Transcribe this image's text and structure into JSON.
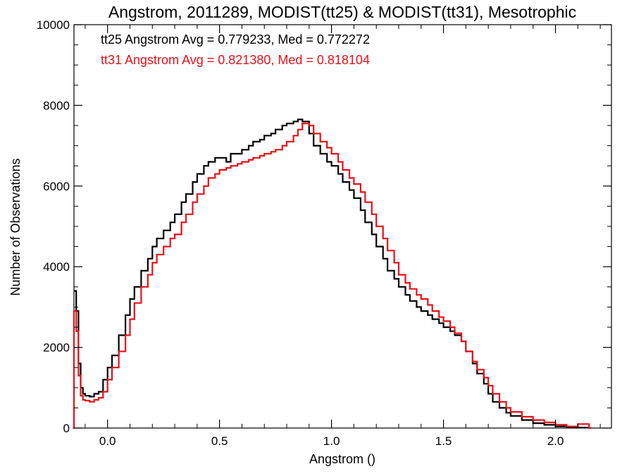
{
  "chart_data": {
    "type": "line",
    "step": true,
    "title": "Angstrom, 2011289, MODIST(tt25) & MODIST(tt31), Mesotrophic",
    "xlabel": "Angstrom ()",
    "ylabel": "Number of Observations",
    "xlim": [
      -0.15,
      2.25
    ],
    "ylim": [
      0,
      10000
    ],
    "xticks": [
      0.0,
      0.5,
      1.0,
      1.5,
      2.0
    ],
    "xtick_labels": [
      "0.0",
      "0.5",
      "1.0",
      "1.5",
      "2.0"
    ],
    "yticks": [
      0,
      2000,
      4000,
      6000,
      8000,
      10000
    ],
    "ytick_labels": [
      "0",
      "2000",
      "4000",
      "6000",
      "8000",
      "10000"
    ],
    "grid": false,
    "annotations": [
      {
        "text": "tt25 Angstrom Avg = 0.779233, Med = 0.772272",
        "color": "#000000"
      },
      {
        "text": "tt31 Angstrom Avg = 0.821380, Med = 0.818104",
        "color": "#e8101a"
      }
    ],
    "series": [
      {
        "color": "#000000",
        "x": [
          -0.15,
          -0.14,
          -0.13,
          -0.12,
          -0.11,
          -0.1,
          -0.08,
          -0.06,
          -0.04,
          -0.02,
          0.0,
          0.02,
          0.05,
          0.08,
          0.1,
          0.12,
          0.15,
          0.18,
          0.2,
          0.22,
          0.25,
          0.28,
          0.3,
          0.33,
          0.35,
          0.38,
          0.4,
          0.43,
          0.45,
          0.48,
          0.5,
          0.53,
          0.55,
          0.58,
          0.6,
          0.63,
          0.65,
          0.68,
          0.7,
          0.73,
          0.75,
          0.78,
          0.8,
          0.83,
          0.85,
          0.87,
          0.9,
          0.92,
          0.95,
          0.98,
          1.0,
          1.03,
          1.05,
          1.08,
          1.1,
          1.13,
          1.15,
          1.18,
          1.2,
          1.23,
          1.25,
          1.28,
          1.3,
          1.33,
          1.35,
          1.38,
          1.4,
          1.43,
          1.45,
          1.48,
          1.5,
          1.53,
          1.55,
          1.58,
          1.6,
          1.63,
          1.65,
          1.68,
          1.7,
          1.72,
          1.75,
          1.78,
          1.8,
          1.85,
          1.9,
          1.95,
          2.0,
          2.05,
          2.1,
          2.15
        ],
        "y": [
          3400,
          2900,
          1600,
          1000,
          850,
          800,
          780,
          850,
          900,
          1200,
          1500,
          1800,
          2300,
          2800,
          3200,
          3500,
          3900,
          4200,
          4500,
          4700,
          4900,
          5100,
          5300,
          5600,
          5800,
          6100,
          6300,
          6500,
          6600,
          6700,
          6700,
          6600,
          6800,
          6800,
          6900,
          7000,
          7100,
          7150,
          7250,
          7300,
          7400,
          7500,
          7550,
          7600,
          7650,
          7600,
          7300,
          7000,
          6800,
          6600,
          6500,
          6300,
          6100,
          5900,
          5700,
          5400,
          5100,
          4800,
          4500,
          4200,
          3900,
          3700,
          3500,
          3300,
          3150,
          3000,
          2900,
          2800,
          2700,
          2600,
          2500,
          2400,
          2300,
          2150,
          1900,
          1600,
          1350,
          1100,
          850,
          650,
          500,
          380,
          300,
          200,
          120,
          80,
          40,
          20,
          10,
          0
        ]
      },
      {
        "color": "#e8101a",
        "x": [
          -0.155,
          -0.15,
          -0.14,
          -0.13,
          -0.12,
          -0.11,
          -0.1,
          -0.08,
          -0.06,
          -0.04,
          -0.02,
          0.0,
          0.02,
          0.05,
          0.08,
          0.1,
          0.12,
          0.15,
          0.18,
          0.2,
          0.22,
          0.25,
          0.28,
          0.3,
          0.33,
          0.35,
          0.38,
          0.4,
          0.43,
          0.45,
          0.48,
          0.5,
          0.53,
          0.55,
          0.58,
          0.6,
          0.63,
          0.65,
          0.68,
          0.7,
          0.73,
          0.75,
          0.78,
          0.8,
          0.83,
          0.85,
          0.87,
          0.9,
          0.92,
          0.95,
          0.98,
          1.0,
          1.03,
          1.05,
          1.08,
          1.1,
          1.13,
          1.15,
          1.18,
          1.2,
          1.23,
          1.25,
          1.28,
          1.3,
          1.33,
          1.35,
          1.38,
          1.4,
          1.43,
          1.45,
          1.48,
          1.5,
          1.53,
          1.55,
          1.58,
          1.6,
          1.63,
          1.65,
          1.68,
          1.7,
          1.72,
          1.75,
          1.78,
          1.8,
          1.85,
          1.9,
          1.95,
          2.0,
          2.05,
          2.1,
          2.15
        ],
        "y": [
          0,
          2900,
          2400,
          1300,
          800,
          700,
          680,
          650,
          700,
          750,
          900,
          1200,
          1500,
          1900,
          2300,
          2700,
          3100,
          3500,
          3800,
          4100,
          4300,
          4500,
          4700,
          4800,
          5100,
          5300,
          5600,
          5800,
          6000,
          6200,
          6300,
          6400,
          6450,
          6500,
          6550,
          6600,
          6650,
          6700,
          6750,
          6800,
          6850,
          6900,
          7000,
          7100,
          7250,
          7400,
          7550,
          7500,
          7300,
          7100,
          6950,
          6800,
          6600,
          6400,
          6200,
          6050,
          5850,
          5600,
          5300,
          5000,
          4700,
          4400,
          4100,
          3800,
          3600,
          3450,
          3300,
          3200,
          3050,
          2900,
          2750,
          2650,
          2500,
          2350,
          2150,
          1900,
          1650,
          1450,
          1250,
          1050,
          850,
          650,
          500,
          400,
          280,
          200,
          140,
          80,
          40,
          100,
          0
        ]
      }
    ]
  }
}
